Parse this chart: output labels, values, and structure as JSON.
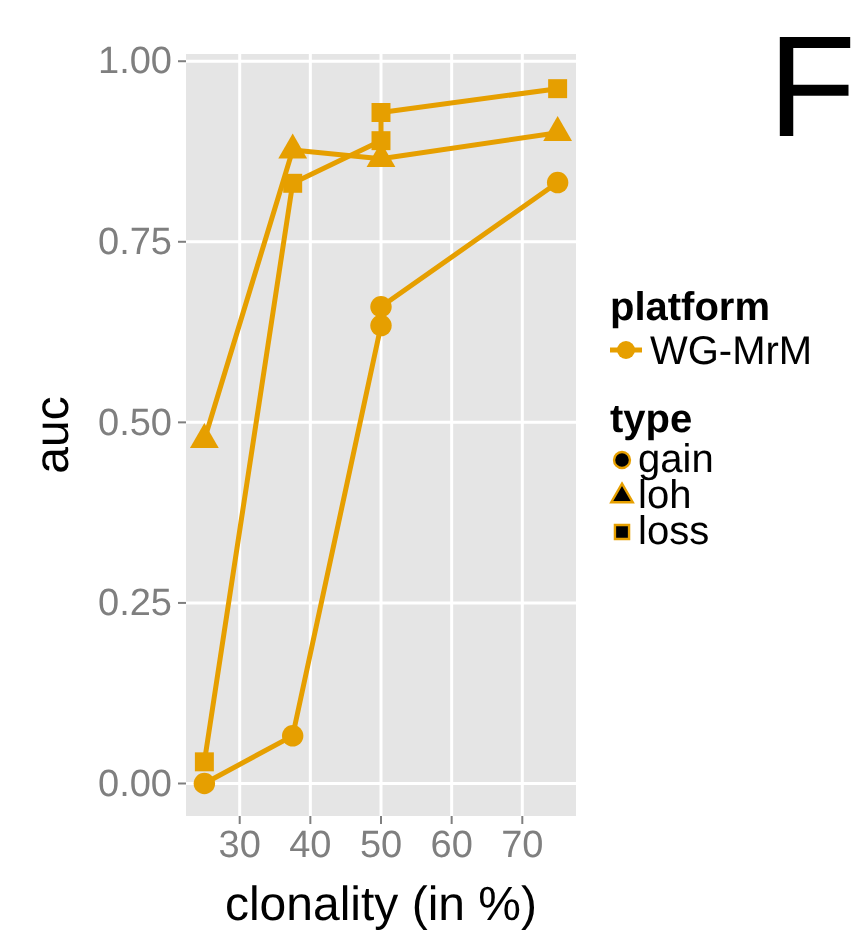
{
  "chart_data": {
    "type": "line",
    "xlabel": "clonality (in %)",
    "ylabel": "auc",
    "xlim": [
      22.4,
      77.6
    ],
    "xticks": [
      30,
      40,
      50,
      60,
      70
    ],
    "ylim": [
      -0.045,
      1.01
    ],
    "yticks": [
      {
        "value": 0,
        "label": "0.00"
      },
      {
        "value": 0.25,
        "label": "0.25"
      },
      {
        "value": 0.5,
        "label": "0.50"
      },
      {
        "value": 0.75,
        "label": "0.75"
      },
      {
        "value": 1,
        "label": "1.00"
      }
    ],
    "grid": true,
    "legend": "right",
    "legend_title": "type",
    "annotations": [
      "platform",
      "WG-MrM",
      "F"
    ],
    "series": [
      {
        "name": "gain",
        "color": "#e69f00",
        "marker": "circle",
        "x": [
          25,
          37.5,
          50,
          50,
          75
        ],
        "values": [
          0.0,
          0.066,
          0.634,
          0.66,
          0.832
        ]
      },
      {
        "name": "loh",
        "color": "#e69f00",
        "marker": "triangle",
        "x": [
          25,
          37.5,
          50,
          75
        ],
        "values": [
          0.476,
          0.877,
          0.865,
          0.901
        ]
      },
      {
        "name": "loss",
        "color": "#e69f00",
        "marker": "square",
        "x": [
          25,
          37.5,
          50,
          50,
          75
        ],
        "values": [
          0.03,
          0.831,
          0.89,
          0.929,
          0.962
        ]
      }
    ]
  }
}
